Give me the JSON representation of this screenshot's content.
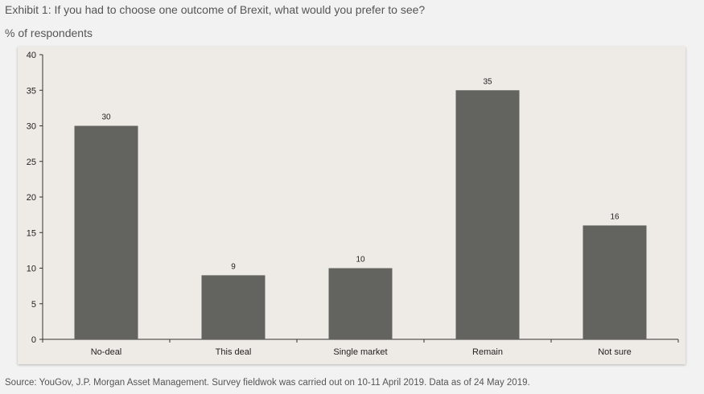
{
  "title": "Exhibit 1: If you had to choose one outcome of Brexit, what would you prefer to see?",
  "subtitle": "% of respondents",
  "source": "Source: YouGov, J.P. Morgan Asset Management. Survey fieldwok was carried out on 10-11 April 2019. Data as of 24 May 2019.",
  "colors": {
    "bar": "#63635f",
    "panel": "#eeebe6"
  },
  "chart_data": {
    "type": "bar",
    "categories": [
      "No-deal",
      "This deal",
      "Single market",
      "Remain",
      "Not sure"
    ],
    "values": [
      30,
      9,
      10,
      35,
      16
    ],
    "ylabel": "% of respondents",
    "ylim": [
      0,
      40
    ],
    "yticks": [
      0,
      5,
      10,
      15,
      20,
      25,
      30,
      35,
      40
    ],
    "grid": false,
    "data_labels": true
  }
}
